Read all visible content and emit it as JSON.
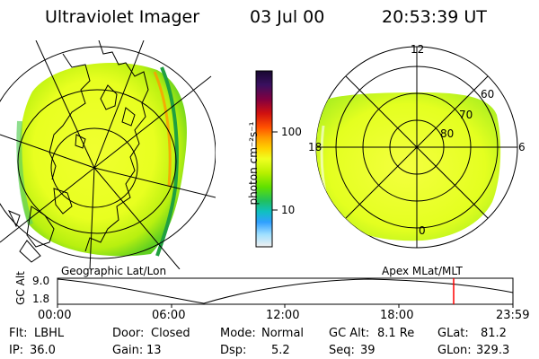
{
  "header": {
    "instrument": "Ultraviolet Imager",
    "date": "03 Jul 00",
    "time": "20:53:39 UT"
  },
  "colorbar": {
    "unit_label": "photon cm⁻²s⁻¹",
    "scale": "log",
    "tick_100": "100",
    "tick_10": "10",
    "colors": [
      "#1a0a3a",
      "#4a1070",
      "#a00020",
      "#e01010",
      "#ff8800",
      "#ffe000",
      "#c8ff00",
      "#40e000",
      "#00c8a0",
      "#00a0ff",
      "#a0e0ff",
      "#e8e8e8"
    ]
  },
  "left_map": {
    "label": "Geographic Lat/Lon",
    "fill_color": "#e8ff20"
  },
  "right_map": {
    "label": "Apex MLat/MLT",
    "mlt_labels": {
      "top": "12",
      "right": "6",
      "left": "18",
      "bottom": "0"
    },
    "lat_labels": [
      "60",
      "70",
      "80"
    ]
  },
  "altitude_plot": {
    "ylabel": "GC Alt",
    "y_max_label": "9.0",
    "y_min_label": "1.8",
    "x_ticks": [
      "00:00",
      "06:00",
      "12:00",
      "18:00",
      "23:59"
    ],
    "current_time_marker_color": "#ff0000",
    "current_time_fraction": 0.87
  },
  "info": {
    "flt_label": "Flt:",
    "flt_value": "LBHL",
    "door_label": "Door:",
    "door_value": "Closed",
    "mode_label": "Mode:",
    "mode_value": "Normal",
    "gcalt_label": "GC Alt:",
    "gcalt_value": "8.1 Re",
    "glat_label": "GLat:",
    "glat_value": "81.2",
    "ip_label": "IP:",
    "ip_value": "36.0",
    "gain_label": "Gain:",
    "gain_value": "13",
    "dsp_label": "Dsp:",
    "dsp_value": "5.2",
    "seq_label": "Seq:",
    "seq_value": "39",
    "glon_label": "GLon:",
    "glon_value": "329.3"
  }
}
